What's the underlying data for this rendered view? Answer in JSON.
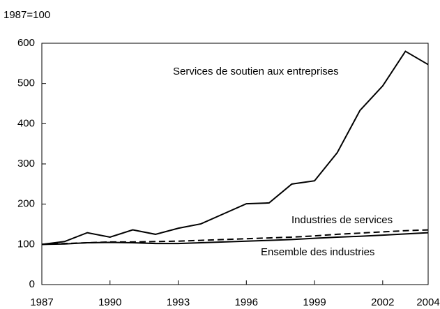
{
  "chart_data": {
    "type": "line",
    "y_label": "1987=100",
    "x": [
      1987,
      1988,
      1989,
      1990,
      1991,
      1992,
      1993,
      1994,
      1995,
      1996,
      1997,
      1998,
      1999,
      2000,
      2001,
      2002,
      2003,
      2004
    ],
    "series": [
      {
        "name": "Services de soutien aux entreprises",
        "color": "#000000",
        "style": "solid",
        "values": [
          100,
          107,
          129,
          118,
          136,
          125,
          140,
          151,
          176,
          201,
          203,
          250,
          258,
          328,
          433,
          494,
          580,
          547
        ]
      },
      {
        "name": "Industries de services",
        "color": "#000000",
        "style": "dashed",
        "values": [
          100,
          102,
          104,
          106,
          106,
          107,
          108,
          110,
          112,
          114,
          116,
          118,
          121,
          125,
          128,
          131,
          134,
          136
        ]
      },
      {
        "name": "Ensemble des industries",
        "color": "#000000",
        "style": "solid",
        "values": [
          100,
          101,
          104,
          105,
          104,
          102,
          102,
          104,
          106,
          108,
          110,
          112,
          115,
          118,
          120,
          123,
          126,
          129
        ]
      }
    ],
    "xlim": [
      1987,
      2004
    ],
    "xticks": [
      1987,
      1990,
      1993,
      1996,
      1999,
      2002,
      2004
    ],
    "ylim": [
      0,
      600
    ],
    "yticks": [
      0,
      100,
      200,
      300,
      400,
      500,
      600
    ],
    "grid": false
  }
}
